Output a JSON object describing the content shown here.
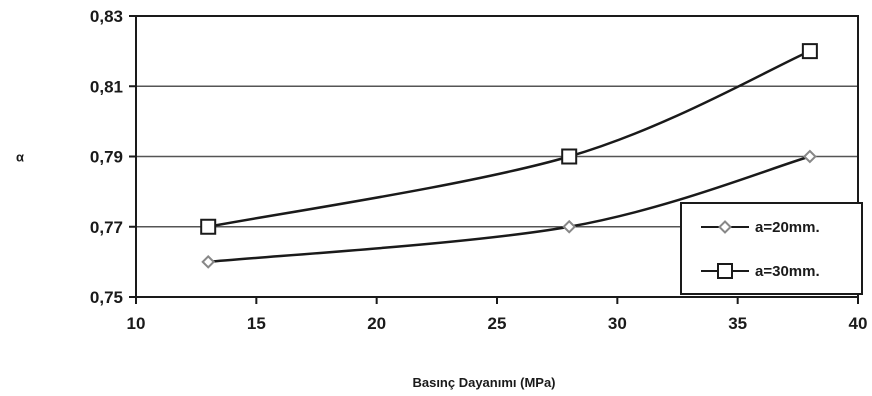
{
  "chart_data": {
    "type": "line",
    "xlabel": "Basınç Dayanımı (MPa)",
    "ylabel": "α",
    "xlim": [
      10,
      40
    ],
    "ylim": [
      0.75,
      0.83
    ],
    "x_ticks": [
      10,
      15,
      20,
      25,
      30,
      35,
      40
    ],
    "y_ticks": [
      "0,75",
      "0,77",
      "0,79",
      "0,81",
      "0,83"
    ],
    "y_tick_values": [
      0.75,
      0.77,
      0.79,
      0.81,
      0.83
    ],
    "grid": "horizontal",
    "legend_position": "right",
    "series": [
      {
        "name": "a=20mm.",
        "marker": "diamond",
        "x": [
          13,
          28,
          38
        ],
        "values": [
          0.76,
          0.77,
          0.79
        ]
      },
      {
        "name": "a=30mm.",
        "marker": "square",
        "x": [
          13,
          28,
          38
        ],
        "values": [
          0.77,
          0.79,
          0.82
        ]
      }
    ],
    "colors": {
      "line": "#1a1a1a",
      "grid": "#555555",
      "marker_fill": "#ffffff",
      "diamond_stroke": "#888888"
    }
  }
}
